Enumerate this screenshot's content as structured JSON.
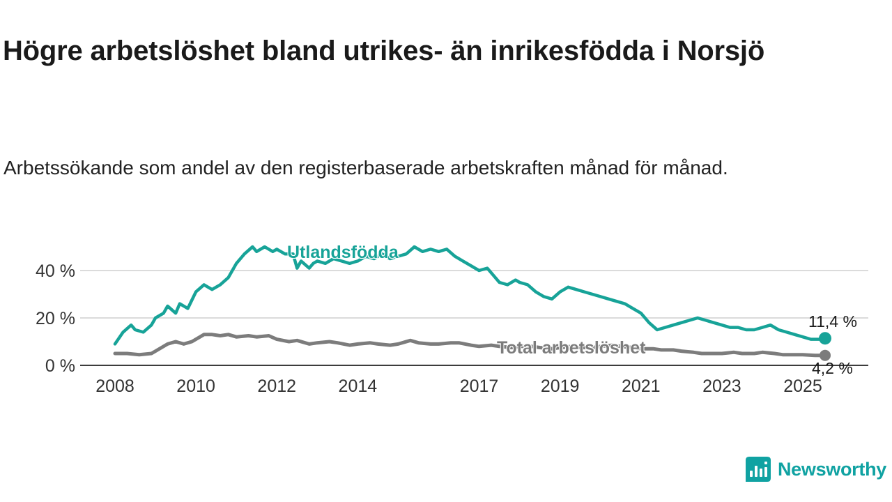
{
  "chart_data": {
    "type": "line",
    "title": "Högre arbetslöshet bland utrikes- än inrikesfödda i Norsjö",
    "subtitle": "Arbetssökande som andel av den registerbaserade arbetskraften månad för månad.",
    "unit": "%",
    "xlim": [
      2007.6,
      2026.3
    ],
    "ylim": [
      0,
      57
    ],
    "grid": "horizontal",
    "legend_position": "inline-labels",
    "axis_text_color": "#333333",
    "gridline_color": "#cfcfcf",
    "baseline_color": "#3c3c3c",
    "x_tick_values": [
      2008,
      2010,
      2012,
      2014,
      2017,
      2019,
      2021,
      2023,
      2025
    ],
    "x_tick_labels": [
      "2008",
      "2010",
      "2012",
      "2014",
      "2017",
      "2019",
      "2021",
      "2023",
      "2025"
    ],
    "y_tick_values": [
      0,
      20,
      40
    ],
    "y_tick_labels": [
      "0 %",
      "20 %",
      "40 %"
    ],
    "series": [
      {
        "id": "utlandsfodda",
        "name": "Utlandsfödda",
        "color": "#17a398",
        "stroke_width": 4.5,
        "marker_radius": 9,
        "end_label": "11,4 %",
        "end_value": 11.4,
        "points": [
          [
            2008.0,
            9
          ],
          [
            2008.2,
            14
          ],
          [
            2008.4,
            17
          ],
          [
            2008.5,
            15
          ],
          [
            2008.7,
            14
          ],
          [
            2008.9,
            17
          ],
          [
            2009.0,
            20
          ],
          [
            2009.2,
            22
          ],
          [
            2009.3,
            25
          ],
          [
            2009.5,
            22
          ],
          [
            2009.6,
            26
          ],
          [
            2009.8,
            24
          ],
          [
            2010.0,
            31
          ],
          [
            2010.2,
            34
          ],
          [
            2010.4,
            32
          ],
          [
            2010.6,
            34
          ],
          [
            2010.8,
            37
          ],
          [
            2011.0,
            43
          ],
          [
            2011.2,
            47
          ],
          [
            2011.4,
            50
          ],
          [
            2011.5,
            48
          ],
          [
            2011.7,
            50
          ],
          [
            2011.9,
            48
          ],
          [
            2012.0,
            49
          ],
          [
            2012.2,
            47
          ],
          [
            2012.4,
            47
          ],
          [
            2012.5,
            41
          ],
          [
            2012.6,
            44
          ],
          [
            2012.8,
            41
          ],
          [
            2012.9,
            43
          ],
          [
            2013.0,
            44
          ],
          [
            2013.2,
            43
          ],
          [
            2013.4,
            45
          ],
          [
            2013.6,
            44
          ],
          [
            2013.8,
            43
          ],
          [
            2014.0,
            44
          ],
          [
            2014.2,
            46
          ],
          [
            2014.4,
            45
          ],
          [
            2014.6,
            47
          ],
          [
            2014.8,
            45
          ],
          [
            2015.0,
            46
          ],
          [
            2015.2,
            47
          ],
          [
            2015.4,
            50
          ],
          [
            2015.6,
            48
          ],
          [
            2015.8,
            49
          ],
          [
            2016.0,
            48
          ],
          [
            2016.2,
            49
          ],
          [
            2016.4,
            46
          ],
          [
            2016.6,
            44
          ],
          [
            2016.8,
            42
          ],
          [
            2017.0,
            40
          ],
          [
            2017.2,
            41
          ],
          [
            2017.4,
            37
          ],
          [
            2017.5,
            35
          ],
          [
            2017.7,
            34
          ],
          [
            2017.9,
            36
          ],
          [
            2018.0,
            35
          ],
          [
            2018.2,
            34
          ],
          [
            2018.4,
            31
          ],
          [
            2018.6,
            29
          ],
          [
            2018.8,
            28
          ],
          [
            2019.0,
            31
          ],
          [
            2019.2,
            33
          ],
          [
            2019.4,
            32
          ],
          [
            2019.6,
            31
          ],
          [
            2019.8,
            30
          ],
          [
            2020.0,
            29
          ],
          [
            2020.2,
            28
          ],
          [
            2020.4,
            27
          ],
          [
            2020.6,
            26
          ],
          [
            2020.8,
            24
          ],
          [
            2021.0,
            22
          ],
          [
            2021.2,
            18
          ],
          [
            2021.4,
            15
          ],
          [
            2021.6,
            16
          ],
          [
            2021.8,
            17
          ],
          [
            2022.0,
            18
          ],
          [
            2022.2,
            19
          ],
          [
            2022.4,
            20
          ],
          [
            2022.6,
            19
          ],
          [
            2022.8,
            18
          ],
          [
            2023.0,
            17
          ],
          [
            2023.2,
            16
          ],
          [
            2023.4,
            16
          ],
          [
            2023.6,
            15
          ],
          [
            2023.8,
            15
          ],
          [
            2024.0,
            16
          ],
          [
            2024.2,
            17
          ],
          [
            2024.4,
            15
          ],
          [
            2024.6,
            14
          ],
          [
            2024.8,
            13
          ],
          [
            2025.0,
            12
          ],
          [
            2025.2,
            11
          ],
          [
            2025.4,
            11
          ],
          [
            2025.55,
            11.4
          ]
        ]
      },
      {
        "id": "total",
        "name": "Total arbetslöshet",
        "color": "#7c7c7c",
        "stroke_width": 5,
        "marker_radius": 8,
        "end_label": "4,2 %",
        "end_value": 4.2,
        "points": [
          [
            2008.0,
            5
          ],
          [
            2008.3,
            5
          ],
          [
            2008.6,
            4.5
          ],
          [
            2008.9,
            5
          ],
          [
            2009.0,
            6
          ],
          [
            2009.3,
            9
          ],
          [
            2009.5,
            10
          ],
          [
            2009.7,
            9
          ],
          [
            2009.9,
            10
          ],
          [
            2010.0,
            11
          ],
          [
            2010.2,
            13
          ],
          [
            2010.4,
            13
          ],
          [
            2010.6,
            12.5
          ],
          [
            2010.8,
            13
          ],
          [
            2011.0,
            12
          ],
          [
            2011.3,
            12.5
          ],
          [
            2011.5,
            12
          ],
          [
            2011.8,
            12.5
          ],
          [
            2012.0,
            11
          ],
          [
            2012.3,
            10
          ],
          [
            2012.5,
            10.5
          ],
          [
            2012.8,
            9
          ],
          [
            2013.0,
            9.5
          ],
          [
            2013.3,
            10
          ],
          [
            2013.5,
            9.5
          ],
          [
            2013.8,
            8.5
          ],
          [
            2014.0,
            9
          ],
          [
            2014.3,
            9.5
          ],
          [
            2014.5,
            9
          ],
          [
            2014.8,
            8.5
          ],
          [
            2015.0,
            9
          ],
          [
            2015.3,
            10.5
          ],
          [
            2015.5,
            9.5
          ],
          [
            2015.8,
            9
          ],
          [
            2016.0,
            9
          ],
          [
            2016.3,
            9.5
          ],
          [
            2016.5,
            9.5
          ],
          [
            2016.8,
            8.5
          ],
          [
            2017.0,
            8
          ],
          [
            2017.3,
            8.5
          ],
          [
            2017.5,
            8
          ],
          [
            2017.8,
            7.5
          ],
          [
            2018.0,
            8
          ],
          [
            2018.3,
            8
          ],
          [
            2018.5,
            7.5
          ],
          [
            2018.8,
            7
          ],
          [
            2019.0,
            7.5
          ],
          [
            2019.3,
            8
          ],
          [
            2019.5,
            7.5
          ],
          [
            2019.8,
            7.5
          ],
          [
            2020.0,
            8
          ],
          [
            2020.3,
            8.5
          ],
          [
            2020.5,
            8
          ],
          [
            2020.8,
            7.5
          ],
          [
            2021.0,
            7
          ],
          [
            2021.3,
            7
          ],
          [
            2021.5,
            6.5
          ],
          [
            2021.8,
            6.5
          ],
          [
            2022.0,
            6
          ],
          [
            2022.3,
            5.5
          ],
          [
            2022.5,
            5
          ],
          [
            2022.8,
            5
          ],
          [
            2023.0,
            5
          ],
          [
            2023.3,
            5.5
          ],
          [
            2023.5,
            5
          ],
          [
            2023.8,
            5
          ],
          [
            2024.0,
            5.5
          ],
          [
            2024.3,
            5
          ],
          [
            2024.5,
            4.5
          ],
          [
            2024.8,
            4.5
          ],
          [
            2025.0,
            4.5
          ],
          [
            2025.3,
            4.2
          ],
          [
            2025.55,
            4.2
          ]
        ]
      }
    ]
  },
  "footer": {
    "brand": "Newsworthy",
    "brand_color": "#10a2a2",
    "icon": "newsworthy-bar-chart-bubble-icon"
  }
}
